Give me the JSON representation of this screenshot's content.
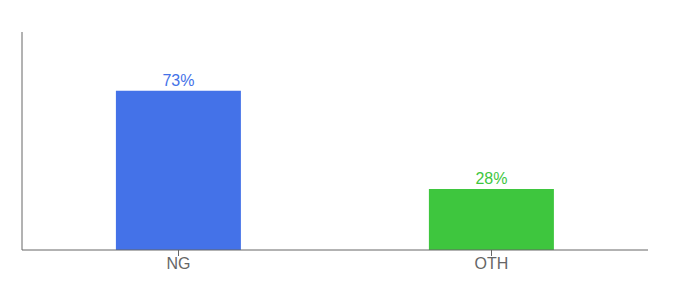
{
  "chart_data": {
    "type": "bar",
    "categories": [
      "NG",
      "OTH"
    ],
    "values": [
      73,
      28
    ],
    "value_labels": [
      "73%",
      "28%"
    ],
    "colors": [
      "#4472e8",
      "#3ec63e"
    ],
    "ylim": [
      0,
      100
    ],
    "data_labels": true,
    "tick_labels": "x",
    "grid": false
  }
}
